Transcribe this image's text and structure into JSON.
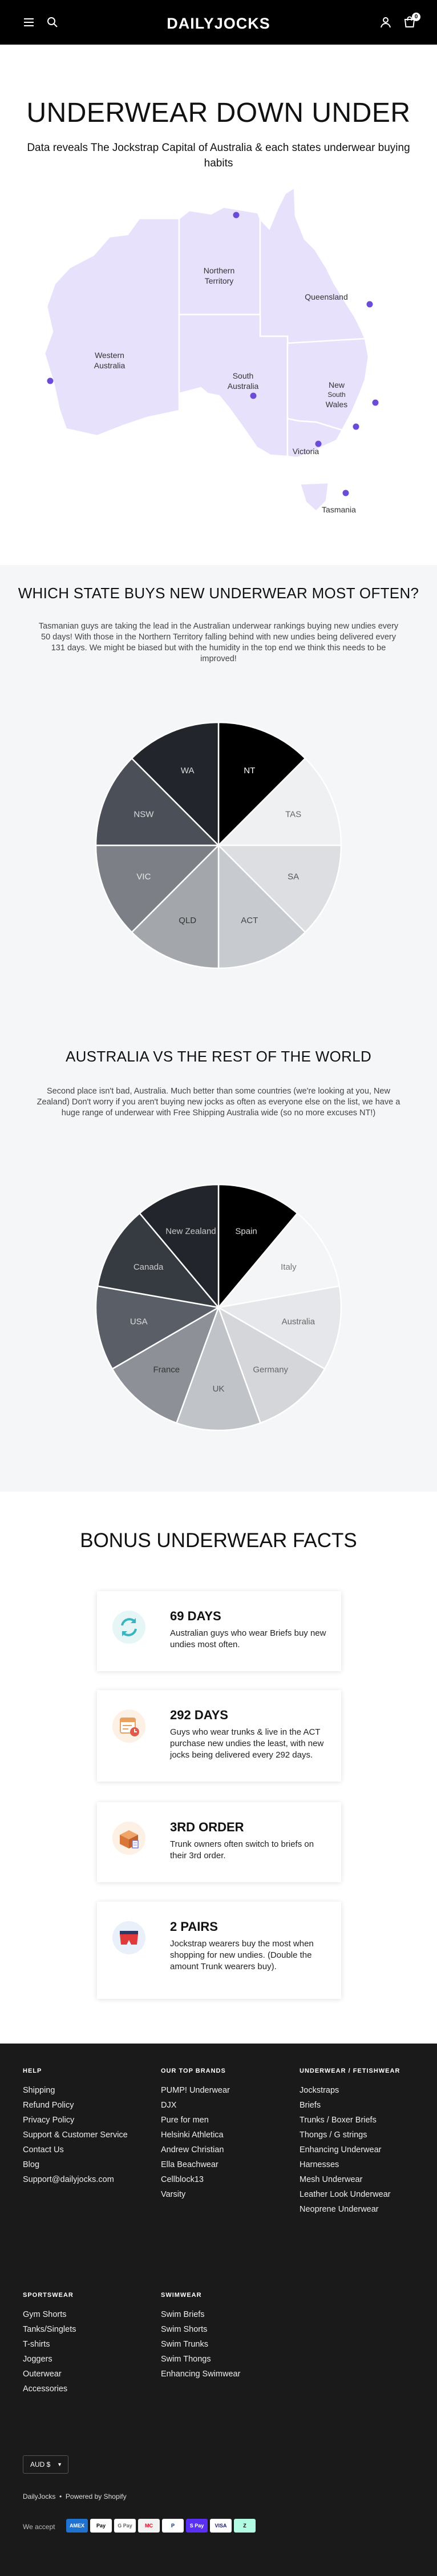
{
  "header": {
    "logo": "DAILYJOCKS",
    "cart_count": "0"
  },
  "hero": {
    "title": "UNDERWEAR DOWN UNDER",
    "subtitle": "Data reveals The Jockstrap Capital of Australia & each states underwear buying habits"
  },
  "map": {
    "state_labels": {
      "wa_line1": "Western",
      "wa_line2": "Australia",
      "nt_line1": "Northern",
      "nt_line2": "Territory",
      "qld": "Queensland",
      "sa_line1": "South",
      "sa_line2": "Australia",
      "nsw_line1": "New",
      "nsw_line2": "South",
      "nsw_line3": "Wales",
      "vic": "Victoria",
      "tas": "Tasmania"
    },
    "fill_color": "#e8e1fb",
    "dot_color": "#6b4cd6"
  },
  "states_section": {
    "title": "WHICH STATE BUYS NEW UNDERWEAR MOST OFTEN?",
    "text": "Tasmanian guys are taking the lead in the Australian underwear rankings buying new undies every 50 days! With those in the Northern Territory falling behind with new undies being delivered every 131 days. We might be biased but with the humidity in the top end we think this needs to be improved!"
  },
  "world_section": {
    "title": "AUSTRALIA VS THE REST OF THE WORLD",
    "text": "Second place isn't bad, Australia. Much better than some countries (we're looking at you, New Zealand) Don't worry if you aren't buying new jocks as often as everyone else on the list, we have a huge range of underwear with Free Shipping Australia wide (so no more excuses NT!)"
  },
  "chart_data": [
    {
      "type": "pie",
      "title": "",
      "categories": [
        "NT",
        "TAS",
        "SA",
        "ACT",
        "QLD",
        "VIC",
        "NSW",
        "WA"
      ],
      "values": [
        1,
        1,
        1,
        1,
        1,
        1,
        1,
        1
      ],
      "colors": [
        "#000000",
        "#eff0f2",
        "#dcdee2",
        "#c7cace",
        "#a3a7ac",
        "#7c8086",
        "#4b4f57",
        "#22252b"
      ],
      "label_colors": [
        "#ffffff",
        "#666666",
        "#555555",
        "#444444",
        "#333333",
        "#e8e8e8",
        "#dddddd",
        "#dddddd"
      ]
    },
    {
      "type": "pie",
      "title": "",
      "categories": [
        "Spain",
        "Italy",
        "Australia",
        "Germany",
        "UK",
        "France",
        "USA",
        "Canada",
        "New Zealand"
      ],
      "values": [
        1,
        1,
        1,
        1,
        1,
        1,
        1,
        1,
        1
      ],
      "colors": [
        "#000000",
        "#f4f5f6",
        "#e6e7ea",
        "#d4d6da",
        "#c0c3c8",
        "#8d9197",
        "#5a5e66",
        "#363a41",
        "#22252b"
      ],
      "label_colors": [
        "#dddddd",
        "#777777",
        "#666666",
        "#666666",
        "#555555",
        "#333333",
        "#dddddd",
        "#cccccc",
        "#cccccc"
      ]
    }
  ],
  "facts": {
    "title": "BONUS UNDERWEAR FACTS",
    "items": [
      {
        "icon": "refresh-cycle-icon",
        "heading": "69 DAYS",
        "body": "Australian guys who wear Briefs buy new undies most often."
      },
      {
        "icon": "calendar-clock-icon",
        "heading": "292 DAYS",
        "body": "Guys who wear trunks & live in the ACT purchase new undies the least, with new jocks being delivered every 292 days."
      },
      {
        "icon": "package-icon",
        "heading": "3RD ORDER",
        "body": "Trunk owners often switch to briefs on their 3rd order."
      },
      {
        "icon": "underwear-icon",
        "heading": "2 PAIRS",
        "body": "Jockstrap wearers buy the most when shopping for new undies. (Double the amount Trunk wearers buy)."
      }
    ]
  },
  "footer": {
    "help": {
      "title": "HELP",
      "links": [
        "Shipping",
        "Refund Policy",
        "Privacy Policy",
        "Support & Customer Service",
        "Contact Us",
        "Blog",
        "Support@dailyjocks.com"
      ]
    },
    "brands": {
      "title": "OUR TOP BRANDS",
      "links": [
        "PUMP! Underwear",
        "DJX",
        "Pure for men",
        "Helsinki Athletica",
        "Andrew Christian",
        "Ella Beachwear",
        "Cellblock13",
        "Varsity"
      ]
    },
    "fetishwear": {
      "title": "UNDERWEAR / FETISHWEAR",
      "links": [
        "Jockstraps",
        "Briefs",
        "Trunks / Boxer Briefs",
        "Thongs / G strings",
        "Enhancing Underwear",
        "Harnesses",
        "Mesh Underwear",
        "Leather Look Underwear",
        "Neoprene Underwear"
      ]
    },
    "sportswear": {
      "title": "SPORTSWEAR",
      "links": [
        "Gym Shorts",
        "Tanks/Singlets",
        "T-shirts",
        "Joggers",
        "Outerwear",
        "Accessories"
      ]
    },
    "swimwear": {
      "title": "SWIMWEAR",
      "links": [
        "Swim Briefs",
        "Swim Shorts",
        "Swim Trunks",
        "Swim Thongs",
        "Enhancing Swimwear"
      ]
    },
    "currency": "AUD $",
    "powered_brand": "DailyJocks",
    "powered_sep": "•",
    "powered_text": "Powered by Shopify",
    "we_accept": "We accept",
    "payments": [
      {
        "label": "AMEX",
        "bg": "#1f72cd",
        "fg": "#ffffff"
      },
      {
        "label": "Pay",
        "bg": "#ffffff",
        "fg": "#000000"
      },
      {
        "label": "G Pay",
        "bg": "#ffffff",
        "fg": "#5f6368"
      },
      {
        "label": "MC",
        "bg": "#f2f2f2",
        "fg": "#eb001b"
      },
      {
        "label": "P",
        "bg": "#ffffff",
        "fg": "#003087"
      },
      {
        "label": "S Pay",
        "bg": "#5a31f4",
        "fg": "#ffffff"
      },
      {
        "label": "VISA",
        "bg": "#ffffff",
        "fg": "#1a1f71"
      },
      {
        "label": "Z",
        "bg": "#b2fce4",
        "fg": "#000000"
      }
    ]
  }
}
